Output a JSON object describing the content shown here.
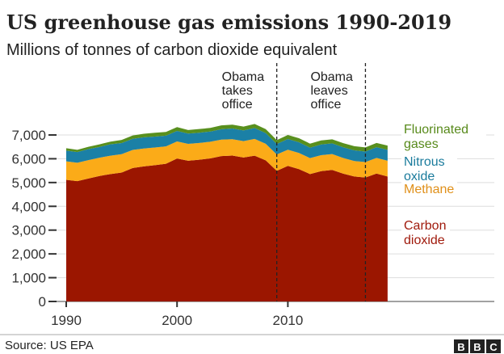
{
  "chart_data": {
    "type": "area",
    "stacked": true,
    "title": "US greenhouse gas emissions 1990-2019",
    "subtitle": "Millions of tonnes of carbon dioxide equivalent",
    "xlabel": "",
    "ylabel": "",
    "x": [
      1990,
      1991,
      1992,
      1993,
      1994,
      1995,
      1996,
      1997,
      1998,
      1999,
      2000,
      2001,
      2002,
      2003,
      2004,
      2005,
      2006,
      2007,
      2008,
      2009,
      2010,
      2011,
      2012,
      2013,
      2014,
      2015,
      2016,
      2017,
      2018,
      2019
    ],
    "xlim": [
      1989,
      2024
    ],
    "ylim": [
      0,
      7600
    ],
    "xticks": [
      "1990",
      "2000",
      "2010"
    ],
    "yticks": [
      "0",
      "1,000",
      "2,000",
      "3,000",
      "4,000",
      "5,000",
      "6,000",
      "7,000"
    ],
    "grid": true,
    "series": [
      {
        "name": "Carbon dioxide",
        "label": [
          "Carbon",
          "dioxide"
        ],
        "color": "#9b1600",
        "labelColor": "#a01a0c",
        "values": [
          5113,
          5057,
          5169,
          5276,
          5358,
          5421,
          5610,
          5680,
          5731,
          5791,
          6009,
          5917,
          5960,
          6015,
          6113,
          6132,
          6052,
          6128,
          5932,
          5492,
          5701,
          5564,
          5356,
          5480,
          5528,
          5371,
          5253,
          5212,
          5376,
          5255
        ]
      },
      {
        "name": "Methane",
        "label": [
          "Methane"
        ],
        "color": "#fbab18",
        "labelColor": "#e0901a",
        "values": [
          780,
          775,
          775,
          770,
          770,
          770,
          760,
          750,
          740,
          730,
          720,
          710,
          705,
          700,
          690,
          690,
          690,
          705,
          700,
          690,
          680,
          680,
          670,
          670,
          670,
          660,
          650,
          650,
          660,
          660
        ]
      },
      {
        "name": "Nitrous oxide",
        "label": [
          "Nitrous",
          "oxide"
        ],
        "color": "#1b80a6",
        "labelColor": "#1a7b9c",
        "values": [
          450,
          450,
          460,
          450,
          480,
          470,
          470,
          470,
          460,
          450,
          440,
          430,
          430,
          430,
          440,
          450,
          450,
          460,
          450,
          440,
          450,
          450,
          440,
          450,
          450,
          450,
          450,
          440,
          450,
          460
        ]
      },
      {
        "name": "Fluorinated gases",
        "label": [
          "Fluorinated",
          "gases"
        ],
        "color": "#588f1e",
        "labelColor": "#588a1b",
        "values": [
          100,
          95,
          100,
          110,
          110,
          130,
          140,
          150,
          160,
          155,
          160,
          150,
          155,
          150,
          160,
          160,
          160,
          170,
          165,
          160,
          170,
          170,
          170,
          170,
          170,
          175,
          175,
          175,
          180,
          180
        ]
      }
    ],
    "annotations": [
      {
        "year": 2009,
        "lines": [
          "Obama",
          "takes",
          "office"
        ]
      },
      {
        "year": 2017,
        "lines": [
          "Obama",
          "leaves",
          "office"
        ]
      }
    ]
  },
  "footer": {
    "source": "Source: US EPA",
    "logo": "BBC"
  }
}
